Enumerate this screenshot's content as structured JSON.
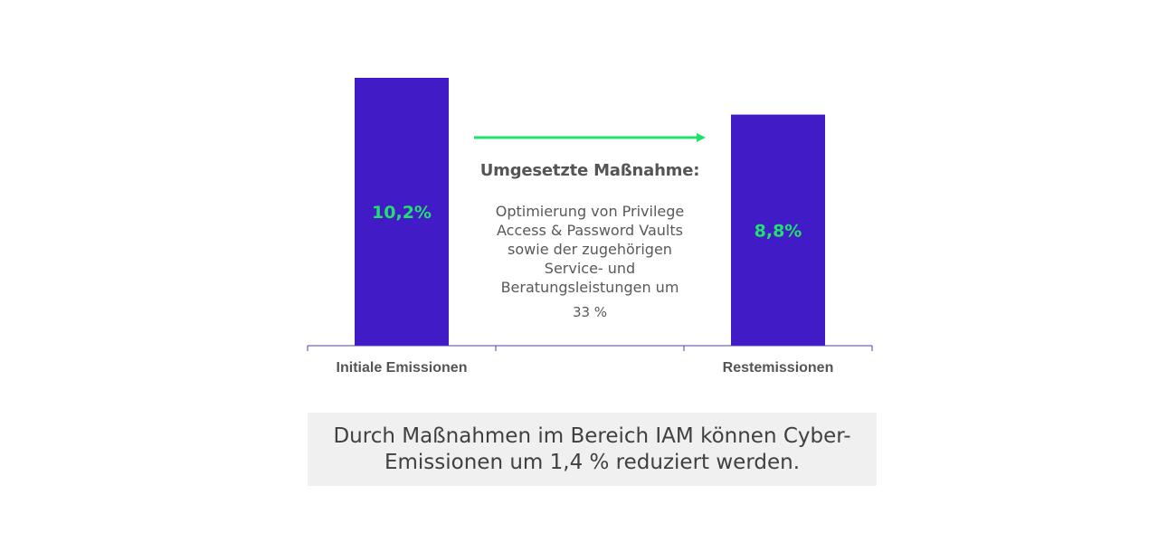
{
  "chart_data": {
    "type": "bar",
    "categories": [
      "Initiale Emissionen",
      "",
      "Restemissionen"
    ],
    "values": [
      10.2,
      null,
      8.8
    ],
    "data_labels": [
      "10,2%",
      "",
      "8,8%"
    ],
    "ylim": [
      0,
      10.2
    ],
    "grid": false,
    "legend": "none"
  },
  "annotation": {
    "title": "Umgesetzte Maßnahme:",
    "body": "Optimierung von Privilege Access & Password Vaults sowie der zugehörigen Service- und Beratungsleistungen um",
    "percent": "33 %"
  },
  "conclusion": "Durch Maßnahmen im Bereich IAM können Cyber-Emissionen um 1,4 % reduziert werden.",
  "colors": {
    "bar": "#411BC6",
    "value_label": "#22E070",
    "arrow": "#1EE06A",
    "axis": "#4B3CC0",
    "conclusion_bg": "#F0F0F0"
  }
}
